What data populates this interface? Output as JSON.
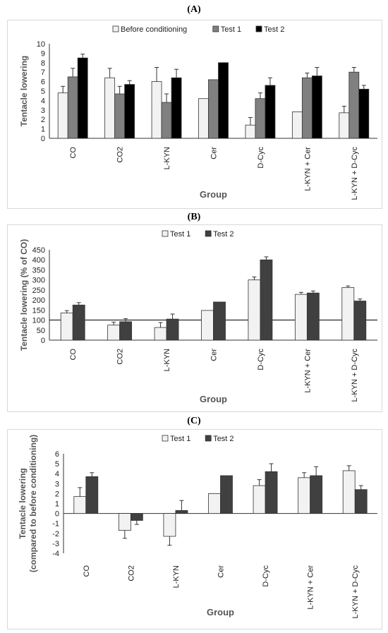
{
  "panels": [
    {
      "label": "(A)",
      "chart_data": {
        "type": "bar",
        "ylabel": "Tentacle lowering",
        "xlabel": "Group",
        "ylim": [
          0,
          10
        ],
        "yticks": [
          0,
          1,
          2,
          3,
          4,
          5,
          6,
          7,
          8,
          9,
          10
        ],
        "legend_position": "top-center",
        "categories": [
          "CO",
          "CO2",
          "L-KYN",
          "Cer",
          "D-Cyc",
          "L-KYN + Cer",
          "L-KYN + D-Cyc"
        ],
        "series": [
          {
            "name": "Before conditioning",
            "color": "#f2f2f2",
            "values": [
              4.8,
              6.4,
              6.0,
              4.2,
              1.4,
              2.8,
              2.7
            ],
            "errors": [
              0.7,
              1.0,
              1.5,
              0,
              0.8,
              0,
              0.7
            ]
          },
          {
            "name": "Test 1",
            "color": "#808080",
            "values": [
              6.5,
              4.7,
              3.8,
              6.2,
              4.2,
              6.4,
              7.0
            ],
            "errors": [
              0.9,
              0.8,
              0.9,
              0,
              0.6,
              0.5,
              0.5
            ]
          },
          {
            "name": "Test 2",
            "color": "#000000",
            "values": [
              8.5,
              5.7,
              6.4,
              8.0,
              5.6,
              6.6,
              5.2
            ],
            "errors": [
              0.4,
              0.4,
              0.9,
              0,
              0.8,
              0.9,
              0.4
            ]
          }
        ]
      }
    },
    {
      "label": "(B)",
      "chart_data": {
        "type": "bar",
        "ylabel": "Tentacle lowering (% of CO)",
        "xlabel": "Group",
        "ylim": [
          0,
          450
        ],
        "yticks": [
          0,
          50,
          100,
          150,
          200,
          250,
          300,
          350,
          400,
          450
        ],
        "reference_line": 100,
        "legend_position": "top-center",
        "categories": [
          "CO",
          "CO2",
          "L-KYN",
          "Cer",
          "D-Cyc",
          "L-KYN + Cer",
          "L-KYN + D-Cyc"
        ],
        "series": [
          {
            "name": "Test 1",
            "color": "#f2f2f2",
            "values": [
              135,
              75,
              63,
              148,
              300,
              228,
              262
            ],
            "errors": [
              12,
              15,
              25,
              0,
              15,
              10,
              8
            ]
          },
          {
            "name": "Test 2",
            "color": "#404040",
            "values": [
              175,
              92,
              105,
              190,
              400,
              235,
              195
            ],
            "errors": [
              12,
              15,
              25,
              0,
              15,
              10,
              10
            ]
          }
        ]
      }
    },
    {
      "label": "(C)",
      "chart_data": {
        "type": "bar",
        "ylabel": "Tentacle lowering",
        "ylabel2": "(compared to before conditioning)",
        "xlabel": "Group",
        "ylim": [
          -4,
          6
        ],
        "yticks": [
          -4,
          -3,
          -2,
          -1,
          0,
          1,
          2,
          3,
          4,
          5,
          6
        ],
        "legend_position": "top-center",
        "categories": [
          "CO",
          "CO2",
          "L-KYN",
          "Cer",
          "D-Cyc",
          "L-KYN + Cer",
          "L-KYN + D-Cyc"
        ],
        "series": [
          {
            "name": "Test 1",
            "color": "#f2f2f2",
            "values": [
              1.7,
              -1.7,
              -2.3,
              2.0,
              2.8,
              3.6,
              4.3
            ],
            "errors": [
              0.9,
              0.8,
              0.9,
              0,
              0.6,
              0.5,
              0.5
            ]
          },
          {
            "name": "Test 2",
            "color": "#404040",
            "values": [
              3.7,
              -0.7,
              0.3,
              3.8,
              4.2,
              3.8,
              2.4
            ],
            "errors": [
              0.4,
              0.4,
              1.0,
              0,
              0.8,
              0.9,
              0.4
            ]
          }
        ]
      }
    }
  ]
}
